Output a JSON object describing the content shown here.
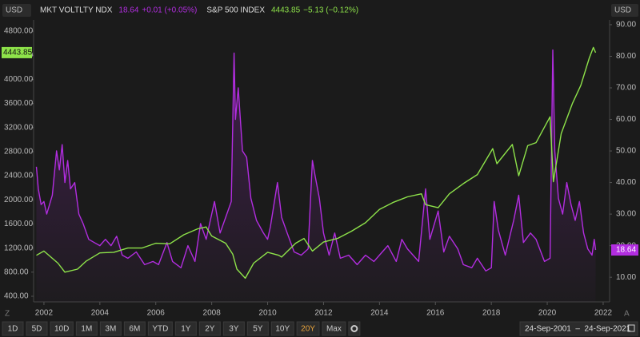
{
  "chart_data": {
    "type": "line",
    "currency_left": "USD",
    "currency_right": "USD",
    "corner_left": "Z",
    "corner_right": "A",
    "xlim": [
      2001.63,
      2022.23
    ],
    "xticks": [
      2002,
      2004,
      2006,
      2008,
      2010,
      2012,
      2014,
      2016,
      2018,
      2020,
      2022
    ],
    "ylim": [
      307,
      4986
    ],
    "yticks": [
      {
        "value": 400,
        "label": "400.00"
      },
      {
        "value": 800,
        "label": "800.00"
      },
      {
        "value": 1200,
        "label": "1200.00"
      },
      {
        "value": 1600,
        "label": "1600.00"
      },
      {
        "value": 2000,
        "label": "2000.00"
      },
      {
        "value": 2400,
        "label": "2400.00"
      },
      {
        "value": 2800,
        "label": "2800.00"
      },
      {
        "value": 3200,
        "label": "3200.00"
      },
      {
        "value": 3600,
        "label": "3600.00"
      },
      {
        "value": 4000,
        "label": "4000.00"
      },
      {
        "value": 4400,
        "label": "4400.00"
      },
      {
        "value": 4800,
        "label": "4800.00"
      }
    ],
    "y2lim": [
      2.2,
      91.5
    ],
    "y2ticks": [
      {
        "value": 10,
        "label": "10.00"
      },
      {
        "value": 20,
        "label": "20.00"
      },
      {
        "value": 30,
        "label": "30.00"
      },
      {
        "value": 40,
        "label": "40.00"
      },
      {
        "value": 50,
        "label": "50.00"
      },
      {
        "value": 60,
        "label": "60.00"
      },
      {
        "value": 70,
        "label": "70.00"
      },
      {
        "value": 80,
        "label": "80.00"
      },
      {
        "value": 90,
        "label": "90.00"
      }
    ],
    "series": [
      {
        "name": "MKT VOLTLTY NDX",
        "color": "#b22de0",
        "axis": "y2",
        "value_label": "18.64",
        "change": "+0.01 (+0.05%)",
        "x": [
          2001.73,
          2001.8,
          2001.9,
          2002.0,
          2002.1,
          2002.3,
          2002.45,
          2002.55,
          2002.65,
          2002.75,
          2002.85,
          2002.95,
          2003.1,
          2003.25,
          2003.4,
          2003.6,
          2003.8,
          2004.0,
          2004.2,
          2004.4,
          2004.6,
          2004.8,
          2005.0,
          2005.3,
          2005.6,
          2005.9,
          2006.1,
          2006.4,
          2006.6,
          2006.9,
          2007.15,
          2007.4,
          2007.6,
          2007.8,
          2007.95,
          2008.1,
          2008.3,
          2008.5,
          2008.7,
          2008.8,
          2008.85,
          2008.95,
          2009.1,
          2009.25,
          2009.4,
          2009.6,
          2009.85,
          2010.0,
          2010.1,
          2010.35,
          2010.5,
          2010.7,
          2010.95,
          2011.2,
          2011.45,
          2011.6,
          2011.7,
          2011.85,
          2012.0,
          2012.2,
          2012.4,
          2012.6,
          2012.9,
          2013.2,
          2013.5,
          2013.8,
          2014.1,
          2014.3,
          2014.6,
          2014.8,
          2015.0,
          2015.4,
          2015.65,
          2015.8,
          2016.1,
          2016.3,
          2016.5,
          2016.8,
          2017.0,
          2017.3,
          2017.5,
          2017.8,
          2018.0,
          2018.1,
          2018.25,
          2018.5,
          2018.8,
          2018.98,
          2019.15,
          2019.4,
          2019.6,
          2019.9,
          2020.1,
          2020.2,
          2020.27,
          2020.4,
          2020.55,
          2020.7,
          2020.85,
          2021.0,
          2021.15,
          2021.3,
          2021.45,
          2021.6,
          2021.68,
          2021.73
        ],
        "values": [
          45,
          38,
          33,
          34,
          30,
          36,
          50,
          44,
          52,
          40,
          47,
          38,
          40,
          30,
          27,
          22,
          21,
          20,
          22,
          20,
          23,
          17,
          16,
          18,
          14,
          15,
          14,
          21,
          15,
          13,
          20,
          15,
          27,
          22,
          28,
          34,
          24,
          29,
          34,
          81,
          60,
          70,
          50,
          48,
          35,
          28,
          24,
          22,
          26,
          40,
          29,
          24,
          18,
          17,
          19,
          47,
          42,
          35,
          24,
          17,
          24,
          16,
          17,
          14,
          17,
          15,
          18,
          20,
          15,
          22,
          19,
          15,
          38,
          22,
          31,
          18,
          23,
          19,
          14,
          13,
          16,
          12,
          13,
          34,
          25,
          17,
          28,
          36,
          21,
          24,
          22,
          15,
          16,
          82,
          50,
          35,
          30,
          40,
          33,
          28,
          34,
          24,
          19,
          17,
          22,
          18.64
        ]
      },
      {
        "name": "S&P 500 INDEX",
        "color": "#8ee34a",
        "axis": "y",
        "value_label": "4443.85",
        "change": "−5.13 (−0.12%)",
        "x": [
          2001.73,
          2002.0,
          2002.5,
          2002.75,
          2003.2,
          2003.5,
          2004.0,
          2004.5,
          2005.0,
          2005.5,
          2006.0,
          2006.5,
          2007.0,
          2007.5,
          2007.8,
          2008.0,
          2008.5,
          2008.75,
          2008.9,
          2009.2,
          2009.5,
          2010.0,
          2010.4,
          2010.5,
          2011.0,
          2011.3,
          2011.6,
          2012.0,
          2012.5,
          2013.0,
          2013.5,
          2014.0,
          2014.5,
          2015.0,
          2015.5,
          2015.65,
          2016.1,
          2016.5,
          2017.0,
          2017.5,
          2018.05,
          2018.2,
          2018.75,
          2018.98,
          2019.3,
          2019.6,
          2020.1,
          2020.22,
          2020.5,
          2020.9,
          2021.2,
          2021.5,
          2021.65,
          2021.73
        ],
        "values": [
          1080,
          1150,
          950,
          800,
          850,
          980,
          1120,
          1130,
          1200,
          1200,
          1280,
          1270,
          1420,
          1520,
          1550,
          1400,
          1280,
          1100,
          850,
          700,
          950,
          1130,
          1080,
          1050,
          1280,
          1360,
          1150,
          1300,
          1360,
          1480,
          1620,
          1840,
          1960,
          2050,
          2100,
          1920,
          1870,
          2100,
          2270,
          2420,
          2850,
          2600,
          2920,
          2400,
          2900,
          2950,
          3380,
          2300,
          3100,
          3600,
          3900,
          4350,
          4530,
          4443.85
        ]
      }
    ],
    "toolbar": {
      "ranges": [
        "1D",
        "5D",
        "10D",
        "1M",
        "3M",
        "6M",
        "YTD",
        "1Y",
        "2Y",
        "3Y",
        "5Y",
        "10Y",
        "20Y",
        "Max"
      ],
      "selected": "20Y",
      "date_range": "24-Sep-2001  –  24-Sep-2021"
    }
  }
}
